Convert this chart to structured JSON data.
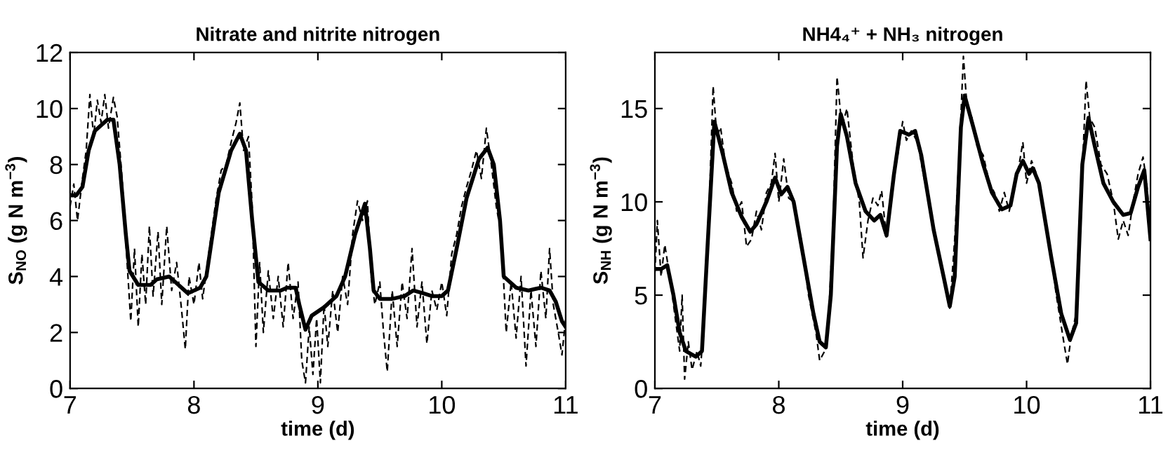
{
  "chart_data": [
    {
      "type": "line",
      "title": "Nitrate and nitrite nitrogen",
      "xlabel": "time (d)",
      "ylabel": "S$_{NO}$ (g N m$^{−3}$)",
      "xlim": [
        7,
        11
      ],
      "xticks": [
        7,
        8,
        9,
        10,
        11
      ],
      "ylim": [
        0,
        12
      ],
      "yticks": [
        0,
        2,
        4,
        6,
        8,
        10,
        12
      ],
      "grid": false,
      "series": [
        {
          "color": "#000000",
          "line_style": "dashed",
          "x": [
            7.0,
            7.03,
            7.06,
            7.1,
            7.13,
            7.16,
            7.19,
            7.22,
            7.25,
            7.28,
            7.31,
            7.35,
            7.38,
            7.42,
            7.46,
            7.49,
            7.52,
            7.55,
            7.58,
            7.61,
            7.64,
            7.67,
            7.71,
            7.74,
            7.78,
            7.82,
            7.86,
            7.9,
            7.93,
            7.96,
            8.0,
            8.04,
            8.07,
            8.1,
            8.14,
            8.18,
            8.22,
            8.26,
            8.3,
            8.34,
            8.37,
            8.4,
            8.44,
            8.47,
            8.5,
            8.53,
            8.56,
            8.6,
            8.64,
            8.68,
            8.72,
            8.76,
            8.8,
            8.84,
            8.87,
            8.9,
            8.93,
            8.96,
            8.99,
            9.02,
            9.05,
            9.08,
            9.12,
            9.16,
            9.2,
            9.24,
            9.28,
            9.32,
            9.36,
            9.4,
            9.43,
            9.46,
            9.5,
            9.53,
            9.56,
            9.6,
            9.64,
            9.68,
            9.72,
            9.76,
            9.8,
            9.84,
            9.88,
            9.92,
            9.96,
            10.0,
            10.04,
            10.08,
            10.12,
            10.16,
            10.2,
            10.24,
            10.28,
            10.32,
            10.36,
            10.4,
            10.44,
            10.48,
            10.52,
            10.56,
            10.6,
            10.64,
            10.68,
            10.72,
            10.76,
            10.8,
            10.84,
            10.87,
            10.9,
            10.94,
            10.97,
            11.0
          ],
          "values": [
            6.5,
            7.3,
            6.0,
            7.5,
            8.5,
            10.5,
            9.0,
            10.3,
            9.5,
            10.5,
            9.3,
            10.4,
            9.7,
            7.5,
            4.5,
            2.4,
            5.0,
            2.2,
            4.8,
            3.0,
            5.8,
            3.3,
            5.6,
            3.0,
            5.8,
            3.5,
            4.5,
            2.8,
            1.4,
            4.0,
            3.0,
            4.5,
            3.2,
            4.2,
            5.5,
            6.8,
            7.8,
            8.0,
            8.8,
            9.5,
            10.2,
            8.5,
            9.0,
            6.5,
            1.5,
            4.5,
            2.0,
            4.2,
            2.5,
            4.0,
            2.2,
            4.5,
            2.5,
            3.8,
            1.0,
            0.2,
            2.2,
            0.5,
            2.5,
            0.2,
            3.0,
            1.5,
            3.5,
            2.0,
            4.0,
            3.0,
            5.5,
            6.7,
            6.0,
            6.7,
            4.0,
            3.0,
            3.8,
            2.0,
            0.6,
            3.5,
            1.5,
            3.8,
            2.5,
            5.0,
            2.2,
            3.8,
            1.6,
            3.5,
            2.8,
            3.8,
            2.6,
            4.8,
            5.5,
            6.5,
            7.2,
            7.8,
            8.5,
            7.5,
            9.3,
            8.0,
            6.5,
            5.5,
            2.0,
            3.8,
            1.8,
            4.0,
            0.8,
            3.5,
            1.5,
            4.2,
            2.5,
            5.0,
            3.0,
            2.0,
            1.2,
            2.5
          ]
        },
        {
          "color": "#000000",
          "line_style": "solid",
          "x": [
            7.0,
            7.05,
            7.1,
            7.15,
            7.2,
            7.3,
            7.35,
            7.4,
            7.45,
            7.48,
            7.55,
            7.65,
            7.7,
            7.8,
            7.85,
            7.95,
            8.0,
            8.05,
            8.1,
            8.15,
            8.2,
            8.3,
            8.37,
            8.42,
            8.47,
            8.52,
            8.6,
            8.7,
            8.75,
            8.82,
            8.85,
            8.9,
            8.95,
            9.05,
            9.15,
            9.22,
            9.3,
            9.38,
            9.42,
            9.45,
            9.5,
            9.6,
            9.7,
            9.77,
            9.85,
            9.92,
            10.0,
            10.05,
            10.12,
            10.2,
            10.3,
            10.37,
            10.42,
            10.47,
            10.5,
            10.6,
            10.7,
            10.8,
            10.87,
            10.92,
            10.97,
            11.0
          ],
          "values": [
            6.9,
            6.9,
            7.2,
            8.5,
            9.2,
            9.6,
            9.6,
            8.0,
            5.5,
            4.2,
            3.7,
            3.7,
            3.9,
            4.0,
            3.8,
            3.4,
            3.5,
            3.6,
            4.0,
            5.5,
            7.0,
            8.5,
            9.1,
            8.5,
            6.0,
            3.8,
            3.5,
            3.5,
            3.6,
            3.6,
            3.0,
            2.1,
            2.6,
            2.9,
            3.3,
            4.0,
            5.5,
            6.6,
            5.0,
            3.5,
            3.2,
            3.2,
            3.3,
            3.5,
            3.4,
            3.3,
            3.3,
            3.5,
            5.0,
            6.8,
            8.2,
            8.6,
            8.0,
            6.0,
            4.0,
            3.6,
            3.5,
            3.6,
            3.5,
            3.1,
            2.4,
            2.2
          ]
        }
      ]
    },
    {
      "type": "line",
      "title": "NH4₄⁺ + NH₃ nitrogen",
      "xlabel": "time (d)",
      "ylabel": "S$_{NH}$ (g N m$^{−3}$)",
      "xlim": [
        7,
        11
      ],
      "xticks": [
        7,
        8,
        9,
        10,
        11
      ],
      "ylim": [
        0,
        18
      ],
      "yticks": [
        0,
        5,
        10,
        15
      ],
      "grid": false,
      "series": [
        {
          "color": "#000000",
          "line_style": "dashed",
          "x": [
            7.0,
            7.02,
            7.05,
            7.08,
            7.12,
            7.16,
            7.2,
            7.22,
            7.24,
            7.27,
            7.3,
            7.34,
            7.37,
            7.4,
            7.44,
            7.47,
            7.5,
            7.53,
            7.57,
            7.62,
            7.66,
            7.7,
            7.74,
            7.78,
            7.82,
            7.86,
            7.9,
            7.94,
            7.97,
            8.0,
            8.04,
            8.08,
            8.12,
            8.18,
            8.24,
            8.3,
            8.33,
            8.37,
            8.4,
            8.44,
            8.47,
            8.51,
            8.55,
            8.6,
            8.65,
            8.68,
            8.72,
            8.76,
            8.8,
            8.83,
            8.87,
            8.92,
            8.96,
            9.0,
            9.03,
            9.07,
            9.12,
            9.18,
            9.24,
            9.3,
            9.35,
            9.38,
            9.42,
            9.46,
            9.49,
            9.52,
            9.56,
            9.6,
            9.65,
            9.7,
            9.74,
            9.78,
            9.82,
            9.86,
            9.9,
            9.94,
            9.97,
            10.0,
            10.04,
            10.08,
            10.12,
            10.18,
            10.24,
            10.3,
            10.33,
            10.36,
            10.4,
            10.44,
            10.48,
            10.51,
            10.55,
            10.6,
            10.65,
            10.7,
            10.74,
            10.78,
            10.82,
            10.86,
            10.9,
            10.94,
            10.97,
            11.0
          ],
          "values": [
            6.2,
            9.0,
            6.0,
            7.7,
            6.0,
            4.0,
            2.0,
            5.0,
            0.5,
            2.5,
            1.0,
            2.0,
            1.2,
            4.0,
            10.0,
            16.2,
            13.5,
            14.0,
            12.0,
            11.0,
            9.5,
            10.0,
            7.6,
            8.0,
            9.5,
            8.5,
            10.5,
            11.0,
            12.6,
            10.0,
            12.3,
            10.2,
            10.0,
            8.0,
            5.0,
            3.0,
            1.5,
            2.0,
            3.5,
            9.0,
            16.7,
            14.0,
            15.0,
            12.0,
            10.0,
            7.0,
            9.0,
            10.2,
            9.8,
            10.6,
            8.0,
            11.0,
            12.5,
            14.3,
            13.3,
            13.8,
            13.2,
            11.0,
            9.0,
            7.0,
            5.5,
            4.3,
            8.0,
            13.0,
            17.8,
            15.0,
            14.5,
            13.0,
            12.5,
            11.0,
            10.5,
            9.5,
            10.5,
            9.5,
            10.8,
            12.0,
            13.2,
            11.0,
            12.2,
            11.5,
            10.0,
            8.0,
            5.0,
            2.5,
            1.3,
            2.8,
            4.0,
            10.0,
            16.5,
            14.5,
            14.0,
            12.0,
            11.5,
            10.0,
            8.0,
            9.0,
            8.2,
            10.0,
            11.5,
            12.4,
            11.0,
            8.5
          ]
        },
        {
          "color": "#000000",
          "line_style": "solid",
          "x": [
            7.0,
            7.05,
            7.1,
            7.15,
            7.2,
            7.25,
            7.33,
            7.38,
            7.42,
            7.48,
            7.55,
            7.62,
            7.7,
            7.77,
            7.82,
            7.9,
            7.97,
            8.02,
            8.07,
            8.12,
            8.2,
            8.28,
            8.33,
            8.38,
            8.42,
            8.47,
            8.5,
            8.55,
            8.62,
            8.7,
            8.77,
            8.82,
            8.87,
            8.93,
            8.98,
            9.05,
            9.1,
            9.15,
            9.25,
            9.33,
            9.38,
            9.42,
            9.47,
            9.5,
            9.57,
            9.65,
            9.72,
            9.8,
            9.87,
            9.92,
            9.97,
            10.02,
            10.05,
            10.1,
            10.2,
            10.28,
            10.35,
            10.4,
            10.45,
            10.5,
            10.55,
            10.62,
            10.7,
            10.78,
            10.84,
            10.9,
            10.95,
            11.0
          ],
          "values": [
            6.4,
            6.4,
            6.6,
            5.0,
            3.0,
            2.0,
            1.7,
            2.0,
            7.0,
            14.3,
            12.5,
            10.5,
            9.2,
            8.4,
            8.8,
            10.0,
            11.3,
            10.4,
            10.8,
            10.0,
            7.0,
            4.0,
            2.5,
            2.2,
            5.0,
            13.0,
            14.7,
            13.5,
            11.0,
            9.5,
            9.0,
            9.3,
            8.2,
            11.5,
            13.8,
            13.6,
            13.8,
            12.5,
            8.5,
            6.0,
            4.4,
            6.0,
            14.0,
            15.7,
            14.0,
            12.0,
            10.5,
            9.6,
            9.8,
            11.5,
            12.2,
            11.5,
            11.8,
            11.0,
            7.0,
            4.0,
            2.6,
            3.5,
            12.0,
            14.5,
            13.0,
            11.0,
            10.0,
            9.3,
            9.4,
            10.8,
            11.7,
            8.0
          ]
        }
      ]
    }
  ]
}
